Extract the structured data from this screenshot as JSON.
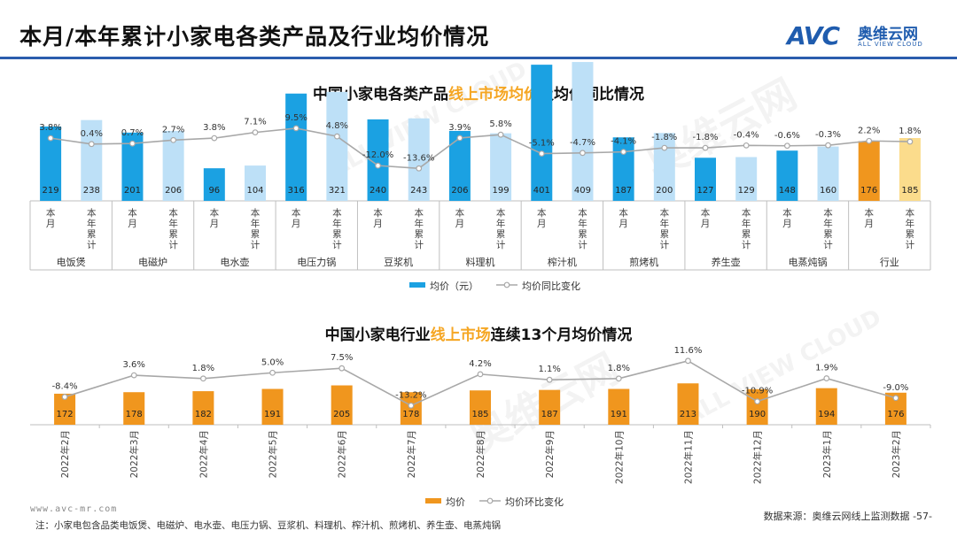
{
  "header": {
    "title": "本月/本年累计小家电各类产品及行业均价情况",
    "logo_mark": "AVC",
    "logo_cn": "奥维云网",
    "logo_en": "ALL VIEW CLOUD"
  },
  "watermark": {
    "text": "奥维云网",
    "en": "ALL VIEW CLOUD"
  },
  "colors": {
    "brand": "#2b5dad",
    "bar_dark_blue": "#1ba1e2",
    "bar_light_blue": "#bde0f7",
    "bar_orange": "#f0961e",
    "bar_light_yellow": "#fbdc8c",
    "line_gray": "#a8a8a8",
    "highlight": "#f5a623"
  },
  "chart_data": [
    {
      "type": "bar",
      "title_parts": [
        "中国小家电各类产品",
        "线上市场均价",
        "及均价同比情况"
      ],
      "groups": [
        {
          "name": "电饭煲",
          "monthly": 219,
          "ytd": 238,
          "yoy_monthly": "3.8%",
          "yoy_ytd": "0.4%",
          "yoy_monthly_value": 3.8,
          "yoy_ytd_value": 0.4
        },
        {
          "name": "电磁炉",
          "monthly": 201,
          "ytd": 206,
          "yoy_monthly": "0.7%",
          "yoy_ytd": "2.7%",
          "yoy_monthly_value": 0.7,
          "yoy_ytd_value": 2.7
        },
        {
          "name": "电水壶",
          "monthly": 96,
          "ytd": 104,
          "yoy_monthly": "3.8%",
          "yoy_ytd": "7.1%",
          "yoy_monthly_value": 3.8,
          "yoy_ytd_value": 7.1
        },
        {
          "name": "电压力锅",
          "monthly": 316,
          "ytd": 321,
          "yoy_monthly": "9.5%",
          "yoy_ytd": "4.8%",
          "yoy_monthly_value": 9.5,
          "yoy_ytd_value": 4.8
        },
        {
          "name": "豆浆机",
          "monthly": 240,
          "ytd": 243,
          "yoy_monthly": "-12.0%",
          "yoy_ytd": "-13.6%",
          "yoy_monthly_value": -12.0,
          "yoy_ytd_value": -13.6
        },
        {
          "name": "料理机",
          "monthly": 206,
          "ytd": 199,
          "yoy_monthly": "3.9%",
          "yoy_ytd": "5.8%",
          "yoy_monthly_value": 3.9,
          "yoy_ytd_value": 5.8
        },
        {
          "name": "榨汁机",
          "monthly": 401,
          "ytd": 409,
          "yoy_monthly": "-5.1%",
          "yoy_ytd": "-4.7%",
          "yoy_monthly_value": -5.1,
          "yoy_ytd_value": -4.7
        },
        {
          "name": "煎烤机",
          "monthly": 187,
          "ytd": 200,
          "yoy_monthly": "-4.1%",
          "yoy_ytd": "-1.8%",
          "yoy_monthly_value": -4.1,
          "yoy_ytd_value": -1.8
        },
        {
          "name": "养生壶",
          "monthly": 127,
          "ytd": 129,
          "yoy_monthly": "-1.8%",
          "yoy_ytd": "-0.4%",
          "yoy_monthly_value": -1.8,
          "yoy_ytd_value": -0.4
        },
        {
          "name": "电蒸炖锅",
          "monthly": 148,
          "ytd": 160,
          "yoy_monthly": "-0.6%",
          "yoy_ytd": "-0.3%",
          "yoy_monthly_value": -0.6,
          "yoy_ytd_value": -0.3
        },
        {
          "name": "行业",
          "monthly": 176,
          "ytd": 185,
          "yoy_monthly": "2.2%",
          "yoy_ytd": "1.8%",
          "yoy_monthly_value": 2.2,
          "yoy_ytd_value": 1.8
        }
      ],
      "sub_labels": [
        "本月",
        "本年累计"
      ],
      "legend": [
        "均价（元）",
        "均价同比变化"
      ],
      "ylim_bar": [
        0,
        430
      ],
      "ylim_line": [
        -16,
        12
      ]
    },
    {
      "type": "bar",
      "title_parts": [
        "中国小家电行业",
        "线上市场",
        "连续13个月均价情况"
      ],
      "categories": [
        "2022年2月",
        "2022年3月",
        "2022年4月",
        "2022年5月",
        "2022年6月",
        "2022年7月",
        "2022年8月",
        "2022年9月",
        "2022年10月",
        "2022年11月",
        "2022年12月",
        "2023年1月",
        "2023年2月"
      ],
      "values": [
        172,
        178,
        182,
        191,
        205,
        178,
        185,
        187,
        191,
        213,
        190,
        194,
        176
      ],
      "mom": [
        -8.4,
        3.6,
        1.8,
        5.0,
        7.5,
        -13.2,
        4.2,
        1.1,
        1.8,
        11.6,
        -10.9,
        1.9,
        -9.0
      ],
      "mom_labels": [
        "-8.4%",
        "3.6%",
        "1.8%",
        "5.0%",
        "7.5%",
        "-13.2%",
        "4.2%",
        "1.1%",
        "1.8%",
        "11.6%",
        "-10.9%",
        "1.9%",
        "-9.0%"
      ],
      "legend": [
        "均价",
        "均价环比变化"
      ],
      "ylim_bar": [
        0,
        220
      ],
      "ylim_line": [
        -15,
        12
      ]
    }
  ],
  "footer": {
    "site": "www.avc-mr.com",
    "note": "注：小家电包含品类电饭煲、电磁炉、电水壶、电压力锅、豆浆机、料理机、榨汁机、煎烤机、养生壶、电蒸炖锅",
    "source": "数据来源：奥维云网线上监测数据",
    "page": "-57-"
  }
}
